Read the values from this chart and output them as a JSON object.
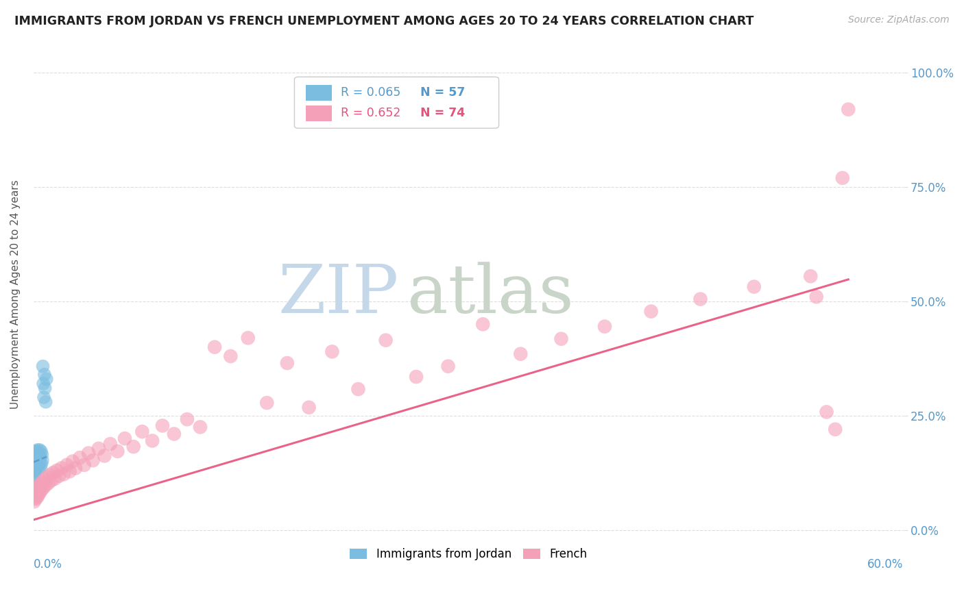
{
  "title": "IMMIGRANTS FROM JORDAN VS FRENCH UNEMPLOYMENT AMONG AGES 20 TO 24 YEARS CORRELATION CHART",
  "source": "Source: ZipAtlas.com",
  "ylabel": "Unemployment Among Ages 20 to 24 years",
  "ytick_labels": [
    "0.0%",
    "25.0%",
    "50.0%",
    "75.0%",
    "100.0%"
  ],
  "ytick_values": [
    0.0,
    0.25,
    0.5,
    0.75,
    1.0
  ],
  "xlim": [
    0,
    0.6
  ],
  "ylim": [
    -0.02,
    1.05
  ],
  "legend_r1": "R = 0.065",
  "legend_n1": "N = 57",
  "legend_r2": "R = 0.652",
  "legend_n2": "N = 74",
  "blue_color": "#7bbde0",
  "pink_color": "#f4a0b8",
  "blue_line_color": "#5599cc",
  "pink_line_color": "#e8517a",
  "title_color": "#222222",
  "source_color": "#aaaaaa",
  "ylabel_color": "#555555",
  "right_tick_color": "#5599cc",
  "grid_color": "#dddddd",
  "jordan_x": [
    0.0002,
    0.0003,
    0.0003,
    0.0004,
    0.0004,
    0.0005,
    0.0005,
    0.0005,
    0.0006,
    0.0006,
    0.0007,
    0.0007,
    0.0008,
    0.0008,
    0.0009,
    0.0009,
    0.001,
    0.001,
    0.0011,
    0.0011,
    0.0012,
    0.0012,
    0.0013,
    0.0014,
    0.0015,
    0.0015,
    0.0016,
    0.0017,
    0.0018,
    0.0019,
    0.002,
    0.0022,
    0.0023,
    0.0025,
    0.0027,
    0.0028,
    0.003,
    0.0032,
    0.0034,
    0.0036,
    0.0038,
    0.004,
    0.0043,
    0.0045,
    0.0048,
    0.005,
    0.0053,
    0.0056,
    0.0059,
    0.0062,
    0.0065,
    0.0068,
    0.0072,
    0.0076,
    0.008,
    0.0085,
    0.009
  ],
  "jordan_y": [
    0.155,
    0.12,
    0.165,
    0.13,
    0.145,
    0.11,
    0.148,
    0.16,
    0.125,
    0.14,
    0.135,
    0.155,
    0.168,
    0.142,
    0.152,
    0.162,
    0.138,
    0.148,
    0.165,
    0.132,
    0.158,
    0.145,
    0.172,
    0.138,
    0.162,
    0.128,
    0.155,
    0.148,
    0.168,
    0.135,
    0.158,
    0.172,
    0.145,
    0.16,
    0.138,
    0.175,
    0.152,
    0.165,
    0.142,
    0.168,
    0.135,
    0.158,
    0.175,
    0.148,
    0.162,
    0.138,
    0.172,
    0.145,
    0.165,
    0.152,
    0.358,
    0.32,
    0.29,
    0.34,
    0.31,
    0.28,
    0.33
  ],
  "french_x": [
    0.0003,
    0.0005,
    0.0008,
    0.001,
    0.0013,
    0.0016,
    0.0019,
    0.0022,
    0.0025,
    0.0028,
    0.0032,
    0.0036,
    0.004,
    0.0045,
    0.005,
    0.0056,
    0.0062,
    0.0069,
    0.0076,
    0.0084,
    0.0093,
    0.0102,
    0.0112,
    0.0123,
    0.0135,
    0.0148,
    0.0162,
    0.0177,
    0.0193,
    0.021,
    0.023,
    0.025,
    0.027,
    0.029,
    0.032,
    0.035,
    0.038,
    0.041,
    0.045,
    0.049,
    0.053,
    0.058,
    0.063,
    0.069,
    0.075,
    0.082,
    0.089,
    0.097,
    0.106,
    0.115,
    0.125,
    0.136,
    0.148,
    0.161,
    0.175,
    0.19,
    0.206,
    0.224,
    0.243,
    0.264,
    0.286,
    0.31,
    0.336,
    0.364,
    0.394,
    0.426,
    0.46,
    0.497,
    0.536,
    0.54,
    0.547,
    0.553,
    0.558,
    0.562
  ],
  "french_y": [
    0.078,
    0.062,
    0.085,
    0.07,
    0.092,
    0.068,
    0.088,
    0.075,
    0.082,
    0.072,
    0.09,
    0.078,
    0.095,
    0.082,
    0.1,
    0.088,
    0.105,
    0.092,
    0.11,
    0.098,
    0.115,
    0.102,
    0.12,
    0.108,
    0.125,
    0.112,
    0.13,
    0.118,
    0.135,
    0.122,
    0.142,
    0.128,
    0.15,
    0.135,
    0.158,
    0.142,
    0.168,
    0.152,
    0.178,
    0.162,
    0.188,
    0.172,
    0.2,
    0.182,
    0.215,
    0.195,
    0.228,
    0.21,
    0.242,
    0.225,
    0.4,
    0.38,
    0.42,
    0.278,
    0.365,
    0.268,
    0.39,
    0.308,
    0.415,
    0.335,
    0.358,
    0.45,
    0.385,
    0.418,
    0.445,
    0.478,
    0.505,
    0.532,
    0.555,
    0.51,
    0.258,
    0.22,
    0.77,
    0.92
  ],
  "blue_line_x": [
    0.0,
    0.009
  ],
  "blue_line_y": [
    0.148,
    0.16
  ],
  "pink_line_x": [
    0.0,
    0.562
  ],
  "pink_line_y": [
    0.022,
    0.548
  ],
  "watermark_zip_color": "#c5d8ea",
  "watermark_atlas_color": "#c8d5c8"
}
